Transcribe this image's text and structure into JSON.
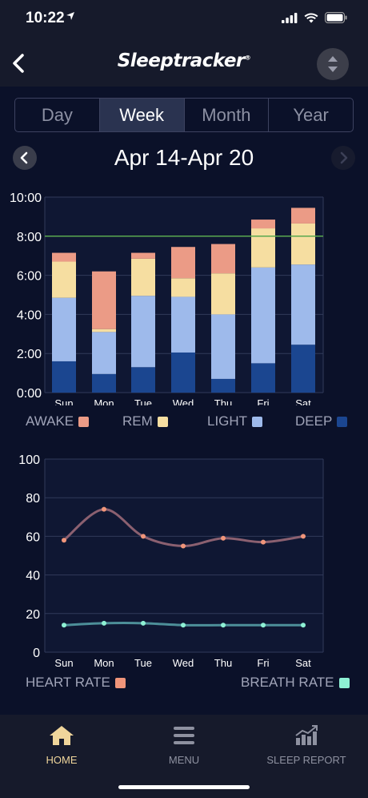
{
  "status_bar": {
    "time": "10:22"
  },
  "nav": {
    "title": "Sleeptracker",
    "trademark": "®"
  },
  "segments": [
    {
      "label": "Day",
      "active": false
    },
    {
      "label": "Week",
      "active": true
    },
    {
      "label": "Month",
      "active": false
    },
    {
      "label": "Year",
      "active": false
    }
  ],
  "date_range": "Apr 14-Apr 20",
  "colors": {
    "awake": "#eb9b86",
    "rem": "#f6dea1",
    "light": "#9ebaeb",
    "deep": "#1b4690",
    "goal_line": "#5aa84f",
    "heart_line": "#8b6070",
    "heart_dot": "#f0957a",
    "breath_line": "#4d8f99",
    "breath_dot": "#8ef1d4"
  },
  "chart_data": [
    {
      "type": "bar",
      "stacked": true,
      "categories": [
        "Sun",
        "Mon",
        "Tue",
        "Wed",
        "Thu",
        "Fri",
        "Sat"
      ],
      "series": [
        {
          "name": "DEEP",
          "values": [
            1.6,
            0.95,
            1.3,
            2.05,
            0.7,
            1.5,
            2.45
          ]
        },
        {
          "name": "LIGHT",
          "values": [
            3.25,
            2.15,
            3.65,
            2.85,
            3.3,
            4.9,
            4.1
          ]
        },
        {
          "name": "REM",
          "values": [
            1.85,
            0.15,
            1.9,
            0.95,
            2.1,
            2.0,
            2.1
          ]
        },
        {
          "name": "AWAKE",
          "values": [
            0.45,
            2.95,
            0.3,
            1.6,
            1.5,
            0.45,
            0.8
          ]
        }
      ],
      "yticks": [
        "0:00",
        "2:00",
        "4:00",
        "6:00",
        "8:00",
        "10:00"
      ],
      "ylim": [
        0,
        10
      ],
      "goal": 8,
      "legend": [
        "AWAKE",
        "REM",
        "LIGHT",
        "DEEP"
      ]
    },
    {
      "type": "line",
      "categories": [
        "Sun",
        "Mon",
        "Tue",
        "Wed",
        "Thu",
        "Fri",
        "Sat"
      ],
      "series": [
        {
          "name": "HEART RATE",
          "values": [
            58,
            74,
            60,
            55,
            59,
            57,
            60
          ]
        },
        {
          "name": "BREATH RATE",
          "values": [
            14,
            15,
            15,
            14,
            14,
            14,
            14
          ]
        }
      ],
      "yticks": [
        "0",
        "20",
        "40",
        "60",
        "80",
        "100"
      ],
      "ylim": [
        0,
        100
      ],
      "legend": [
        "HEART RATE",
        "BREATH RATE"
      ]
    }
  ],
  "tabs": [
    {
      "label": "HOME",
      "icon": "home-icon",
      "active": true
    },
    {
      "label": "MENU",
      "icon": "menu-icon",
      "active": false
    },
    {
      "label": "SLEEP REPORT",
      "icon": "sleep-report-icon",
      "active": false
    }
  ]
}
